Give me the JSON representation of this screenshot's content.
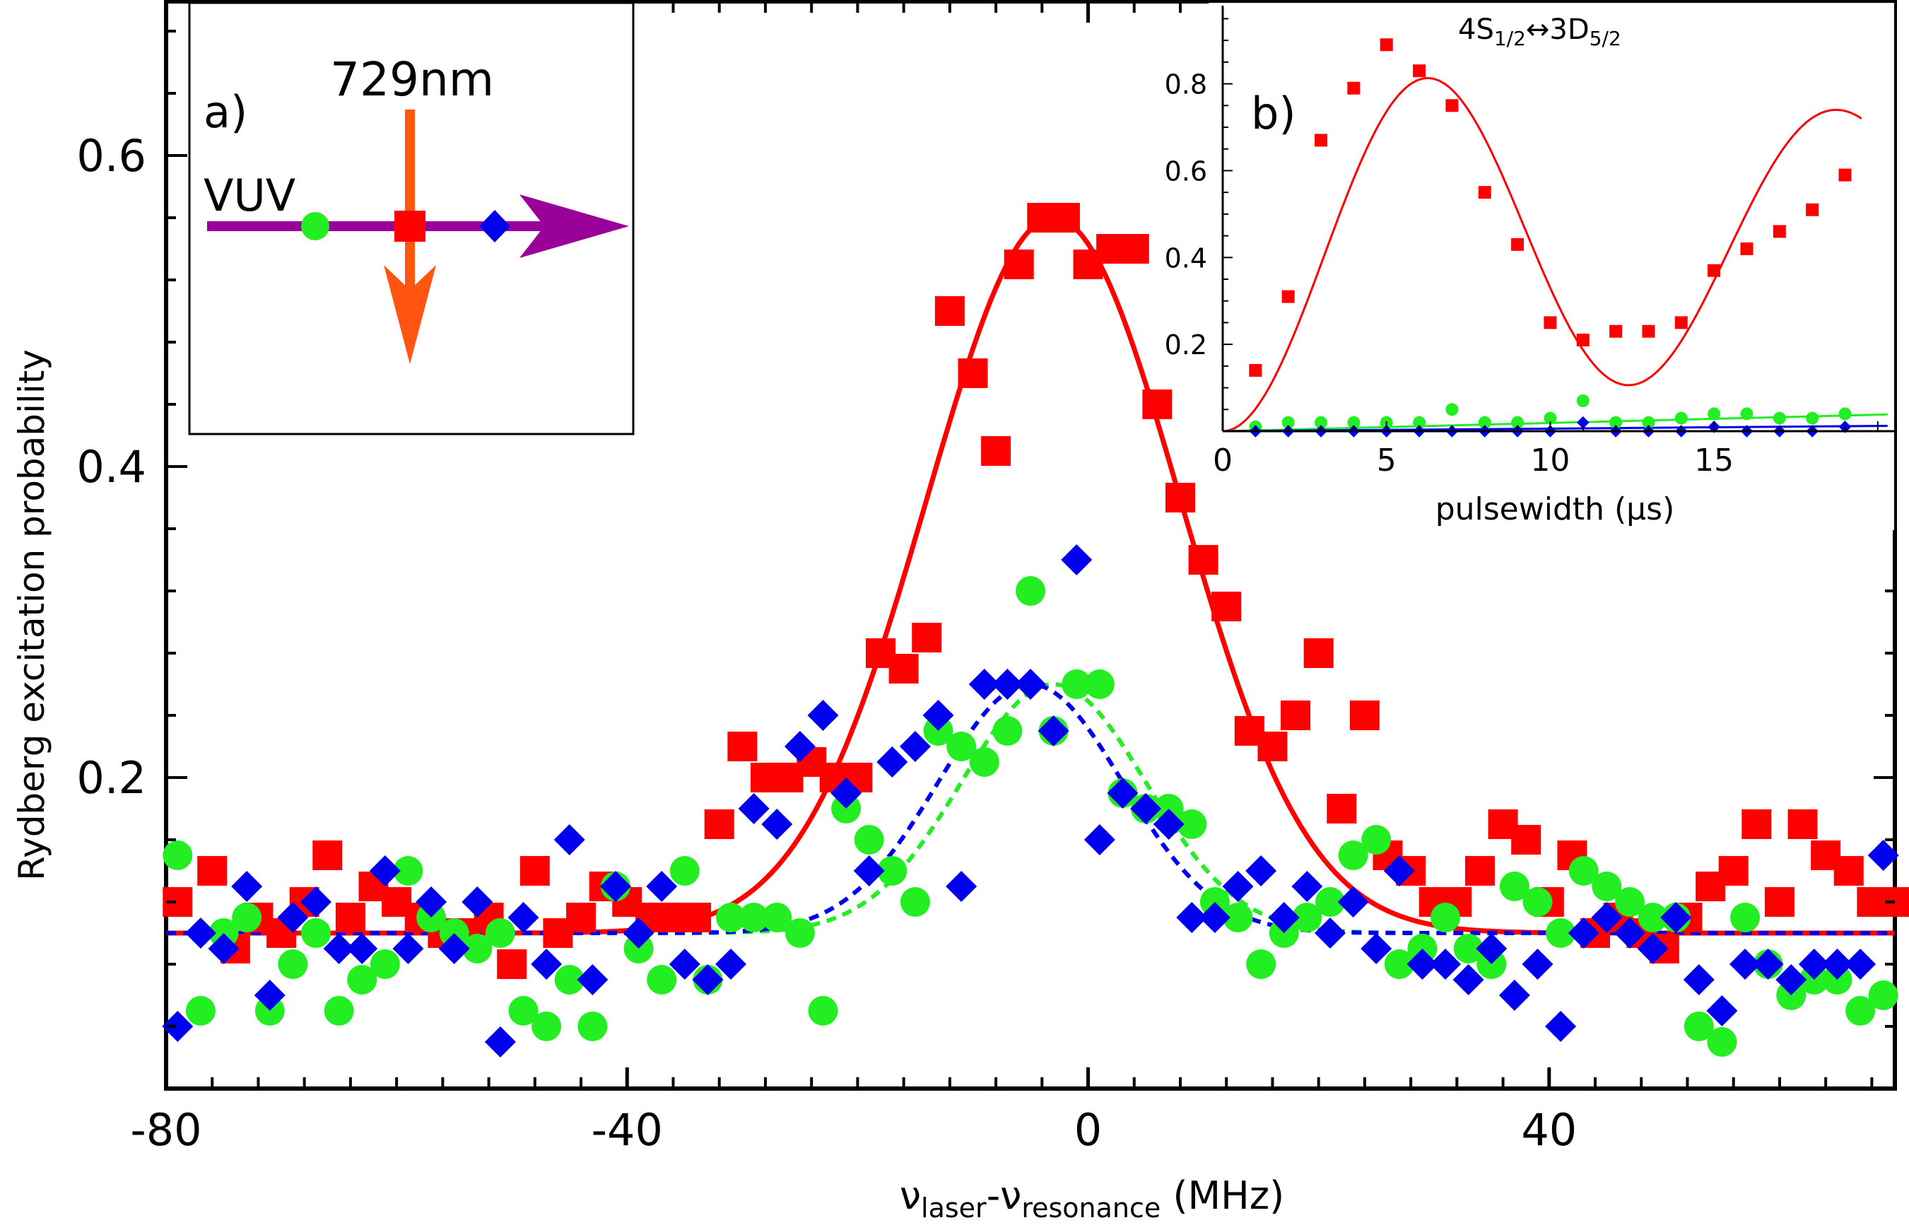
{
  "chart_data": [
    {
      "type": "scatter",
      "xlabel_main": "ν",
      "xlabel_sub1": "laser",
      "xlabel_sep": "-ν",
      "xlabel_sub2": "resonance",
      "xlabel_unit": " (MHz)",
      "ylabel": "Rydberg excitation probability",
      "xlim": [
        -80,
        70
      ],
      "ylim": [
        0.0,
        0.7
      ],
      "xticks": [
        -80,
        -40,
        0,
        40
      ],
      "yticks": [
        0.2,
        0.4,
        0.6
      ],
      "ytick_labels": [
        "0.2",
        "0.4",
        "0.6"
      ],
      "baseline": 0.1,
      "series": [
        {
          "marker": "square",
          "color": "#ff0000",
          "x": [
            -79,
            -76,
            -74,
            -72,
            -70,
            -68,
            -66,
            -64,
            -62,
            -60,
            -58,
            -56,
            -54,
            -52,
            -50,
            -48,
            -46,
            -44,
            -42,
            -40,
            -38,
            -36,
            -34,
            -32,
            -30,
            -28,
            -26,
            -24,
            -22,
            -20,
            -18,
            -16,
            -14,
            -12,
            -10,
            -8,
            -6,
            -4,
            -2,
            0,
            2,
            4,
            6,
            8,
            10,
            12,
            14,
            16,
            18,
            20,
            22,
            24,
            26,
            28,
            30,
            32,
            34,
            36,
            38,
            40,
            42,
            44,
            46,
            48,
            50,
            52,
            54,
            56,
            58,
            60,
            62,
            64,
            66,
            68,
            70
          ],
          "y": [
            0.12,
            0.14,
            0.09,
            0.11,
            0.1,
            0.12,
            0.15,
            0.11,
            0.13,
            0.12,
            0.11,
            0.1,
            0.1,
            0.11,
            0.08,
            0.14,
            0.1,
            0.11,
            0.13,
            0.12,
            0.11,
            0.11,
            0.11,
            0.17,
            0.22,
            0.2,
            0.2,
            0.21,
            0.2,
            0.2,
            0.28,
            0.27,
            0.29,
            0.5,
            0.46,
            0.41,
            0.53,
            0.56,
            0.56,
            0.53,
            0.54,
            0.54,
            0.44,
            0.38,
            0.34,
            0.31,
            0.23,
            0.22,
            0.24,
            0.28,
            0.18,
            0.24,
            0.15,
            0.14,
            0.12,
            0.12,
            0.14,
            0.17,
            0.16,
            0.12,
            0.15,
            0.1,
            0.11,
            0.1,
            0.09,
            0.11,
            0.13,
            0.14,
            0.17,
            0.12,
            0.17,
            0.15,
            0.14,
            0.12,
            0.12
          ]
        },
        {
          "marker": "circle",
          "color": "#22ee22",
          "x": [
            -79,
            -77,
            -75,
            -73,
            -71,
            -69,
            -67,
            -65,
            -63,
            -61,
            -59,
            -57,
            -55,
            -53,
            -51,
            -49,
            -47,
            -45,
            -43,
            -41,
            -39,
            -37,
            -35,
            -33,
            -31,
            -29,
            -27,
            -25,
            -23,
            -21,
            -19,
            -17,
            -15,
            -13,
            -11,
            -9,
            -7,
            -5,
            -3,
            -1,
            1,
            3,
            5,
            7,
            9,
            11,
            13,
            15,
            17,
            19,
            21,
            23,
            25,
            27,
            29,
            31,
            33,
            35,
            37,
            39,
            41,
            43,
            45,
            47,
            49,
            51,
            53,
            55,
            57,
            59,
            61,
            63,
            65,
            67,
            69
          ],
          "y": [
            0.15,
            0.05,
            0.1,
            0.11,
            0.05,
            0.08,
            0.1,
            0.05,
            0.07,
            0.08,
            0.14,
            0.11,
            0.1,
            0.09,
            0.1,
            0.05,
            0.04,
            0.07,
            0.04,
            0.13,
            0.09,
            0.07,
            0.14,
            0.07,
            0.11,
            0.11,
            0.11,
            0.1,
            0.05,
            0.18,
            0.16,
            0.14,
            0.12,
            0.23,
            0.22,
            0.21,
            0.23,
            0.32,
            0.23,
            0.26,
            0.26,
            0.19,
            0.18,
            0.18,
            0.17,
            0.12,
            0.11,
            0.08,
            0.1,
            0.11,
            0.12,
            0.15,
            0.16,
            0.08,
            0.09,
            0.11,
            0.09,
            0.08,
            0.13,
            0.12,
            0.1,
            0.14,
            0.13,
            0.12,
            0.11,
            0.11,
            0.04,
            0.03,
            0.11,
            0.08,
            0.06,
            0.07,
            0.07,
            0.05,
            0.06
          ]
        },
        {
          "marker": "diamond",
          "color": "#0000ee",
          "x": [
            -79,
            -77,
            -75,
            -73,
            -71,
            -69,
            -67,
            -65,
            -63,
            -61,
            -59,
            -57,
            -55,
            -53,
            -51,
            -49,
            -47,
            -45,
            -43,
            -41,
            -39,
            -37,
            -35,
            -33,
            -31,
            -29,
            -27,
            -25,
            -23,
            -21,
            -19,
            -17,
            -15,
            -13,
            -11,
            -9,
            -7,
            -5,
            -3,
            -1,
            1,
            3,
            5,
            7,
            9,
            11,
            13,
            15,
            17,
            19,
            21,
            23,
            25,
            27,
            29,
            31,
            33,
            35,
            37,
            39,
            41,
            43,
            45,
            47,
            49,
            51,
            53,
            55,
            57,
            59,
            61,
            63,
            65,
            67,
            69
          ],
          "y": [
            0.04,
            0.1,
            0.09,
            0.13,
            0.06,
            0.11,
            0.12,
            0.09,
            0.09,
            0.14,
            0.09,
            0.12,
            0.09,
            0.12,
            0.03,
            0.11,
            0.08,
            0.16,
            0.07,
            0.13,
            0.1,
            0.13,
            0.08,
            0.07,
            0.08,
            0.18,
            0.17,
            0.22,
            0.24,
            0.19,
            0.14,
            0.21,
            0.22,
            0.24,
            0.13,
            0.26,
            0.26,
            0.26,
            0.23,
            0.34,
            0.16,
            0.19,
            0.18,
            0.17,
            0.11,
            0.11,
            0.13,
            0.14,
            0.11,
            0.13,
            0.1,
            0.12,
            0.09,
            0.14,
            0.08,
            0.08,
            0.07,
            0.09,
            0.06,
            0.08,
            0.04,
            0.1,
            0.11,
            0.1,
            0.09,
            0.11,
            0.07,
            0.05,
            0.08,
            0.08,
            0.07,
            0.08,
            0.08,
            0.08,
            0.15
          ]
        }
      ],
      "fits": [
        {
          "color": "#ff0000",
          "style": "solid",
          "center": -3,
          "amp": 0.46,
          "sigma": 11
        },
        {
          "color": "#22ee22",
          "style": "dashed",
          "center": -3,
          "amp": 0.16,
          "sigma": 8
        },
        {
          "color": "#0000ee",
          "style": "dashed",
          "center": -5,
          "amp": 0.16,
          "sigma": 8
        }
      ]
    },
    {
      "type": "scatter",
      "panel_label": "b)",
      "title": "4S",
      "title_sub1": "1/2",
      "title_mid": "↔3D",
      "title_sub2": "5/2",
      "xlabel": "pulsewidth (μs)",
      "xlim": [
        0,
        20.5
      ],
      "ylim": [
        0,
        0.98
      ],
      "xticks": [
        0,
        5,
        10,
        15
      ],
      "yticks": [
        0.2,
        0.4,
        0.6,
        0.8
      ],
      "ytick_labels": [
        "0.2",
        "0.4",
        "0.6",
        "0.8"
      ],
      "series": [
        {
          "marker": "square",
          "color": "#ff0000",
          "x": [
            1,
            2,
            3,
            4,
            5,
            6,
            7,
            8,
            9,
            10,
            11,
            12,
            13,
            14,
            15,
            16,
            17,
            18,
            19
          ],
          "y": [
            0.14,
            0.31,
            0.67,
            0.79,
            0.89,
            0.83,
            0.75,
            0.55,
            0.43,
            0.25,
            0.21,
            0.23,
            0.23,
            0.25,
            0.37,
            0.42,
            0.46,
            0.51,
            0.59
          ]
        },
        {
          "marker": "circle",
          "color": "#22ee22",
          "x": [
            1,
            2,
            3,
            4,
            5,
            6,
            7,
            8,
            9,
            10,
            11,
            12,
            13,
            14,
            15,
            16,
            17,
            18,
            19
          ],
          "y": [
            0.01,
            0.02,
            0.02,
            0.02,
            0.02,
            0.02,
            0.05,
            0.02,
            0.02,
            0.03,
            0.07,
            0.02,
            0.02,
            0.03,
            0.04,
            0.04,
            0.03,
            0.03,
            0.04
          ]
        },
        {
          "marker": "diamond",
          "color": "#0000ee",
          "x": [
            1,
            2,
            3,
            4,
            5,
            6,
            7,
            8,
            9,
            10,
            11,
            12,
            13,
            14,
            15,
            16,
            17,
            18,
            19
          ],
          "y": [
            0.0,
            0.0,
            0.0,
            0.0,
            0.0,
            0.0,
            0.0,
            0.0,
            0.0,
            0.0,
            0.02,
            0.0,
            0.0,
            0.0,
            0.01,
            0.0,
            0.0,
            0.0,
            0.01
          ]
        }
      ],
      "fits": [
        {
          "color": "#ff0000",
          "amp": 0.85,
          "period": 12.6,
          "damp_to": 0.45
        },
        {
          "color": "#22ee22",
          "slope": 0.0019
        },
        {
          "color": "#0000ee",
          "slope": 0.0006
        }
      ]
    }
  ],
  "inset_a": {
    "panel_label": "a)",
    "laser_label": "729nm",
    "beam_label": "VUV",
    "beam_color": "#990099",
    "laser_color": "#ff5511"
  }
}
